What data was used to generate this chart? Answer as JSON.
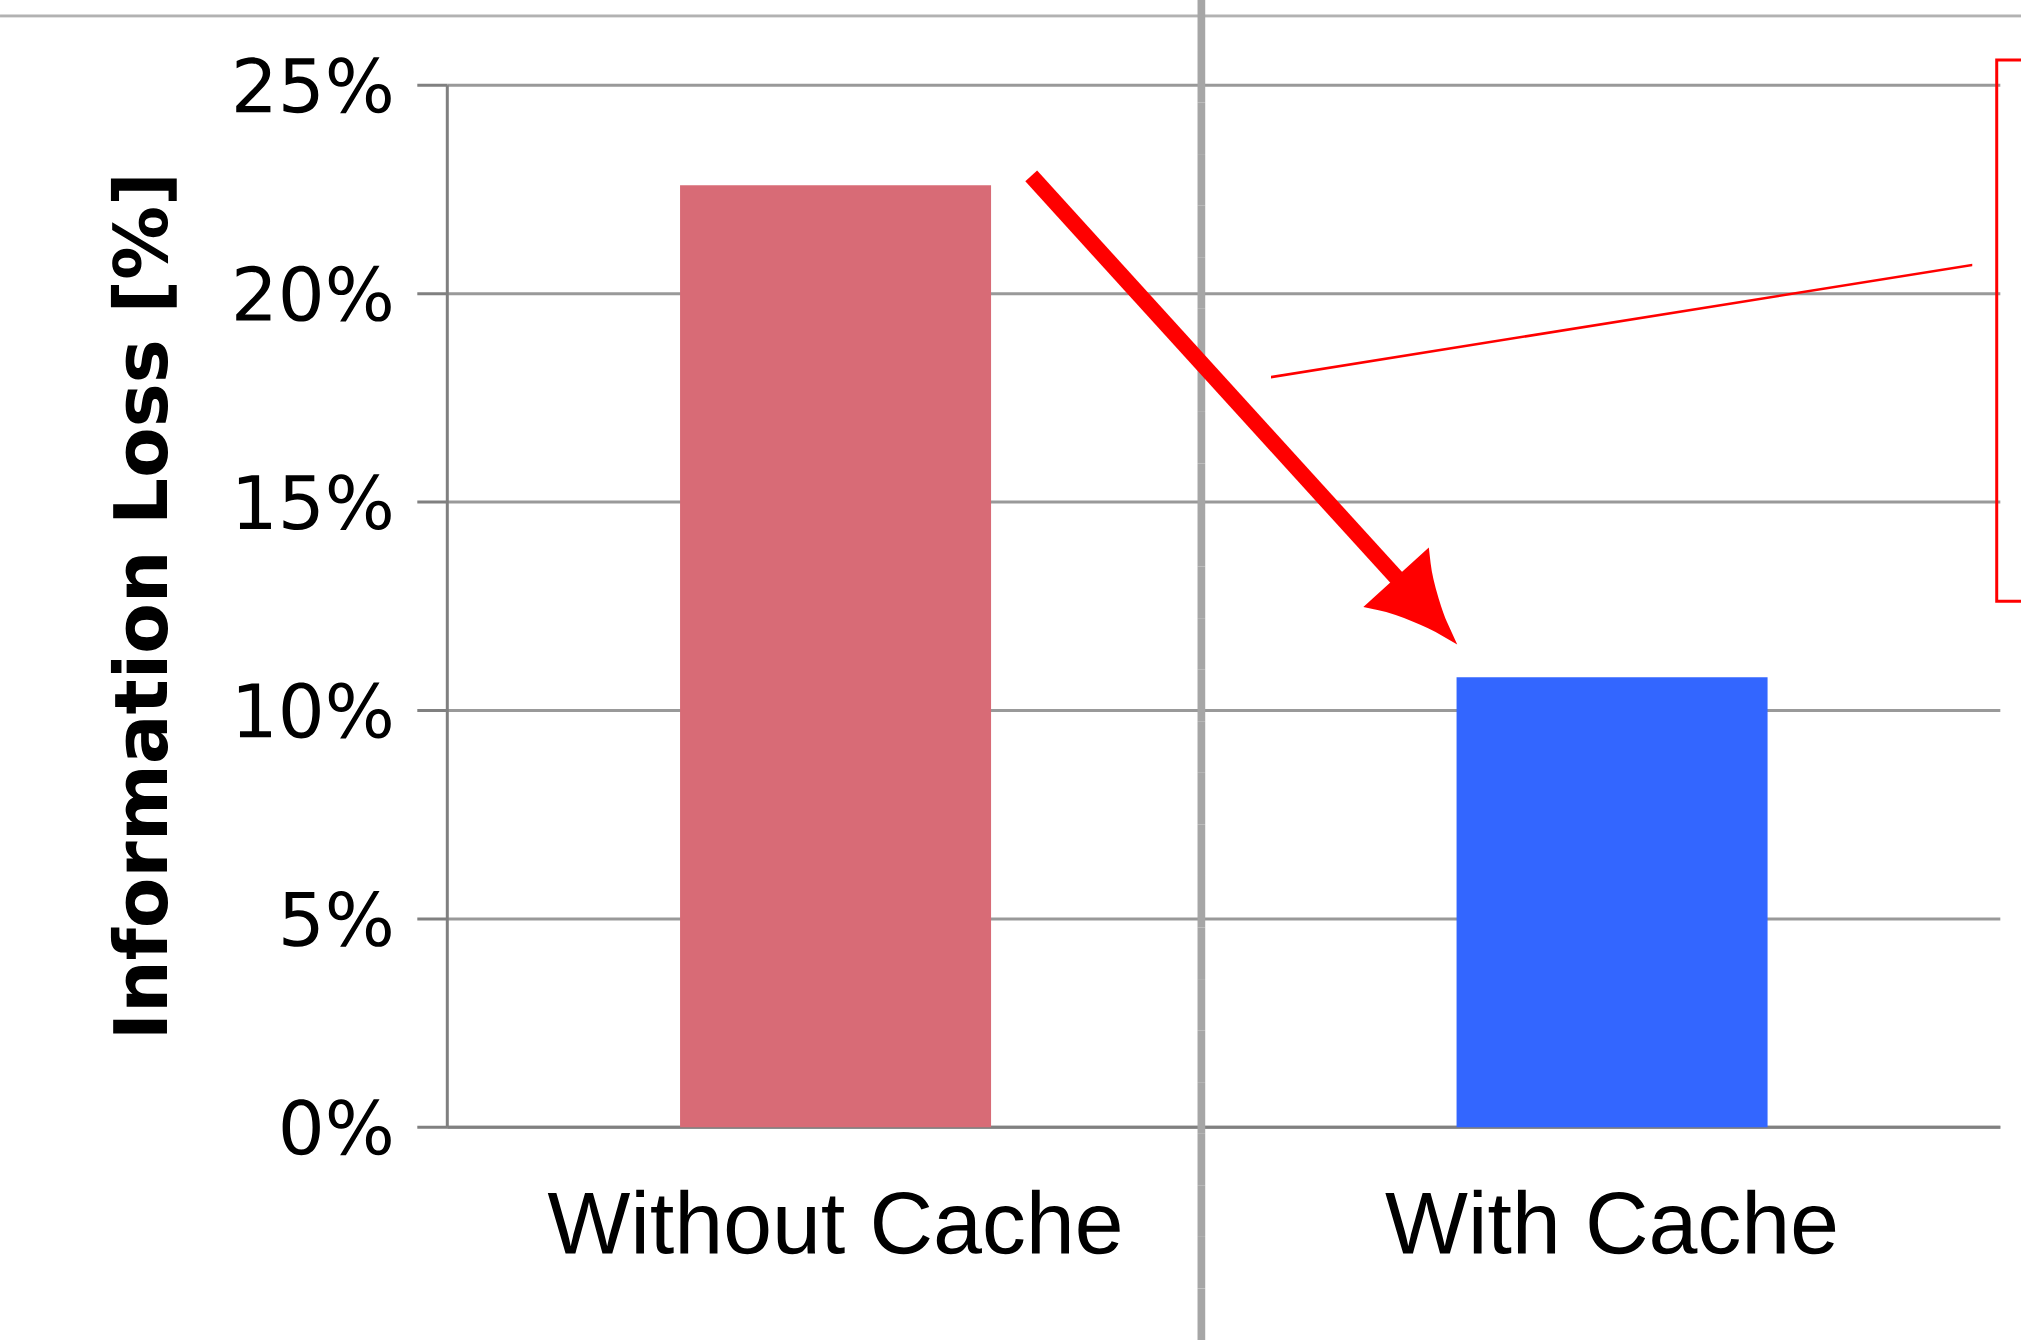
{
  "chart_data": {
    "type": "bar",
    "ylabel": "Information Loss [%]",
    "categories": [
      "Without Cache",
      "With Cache"
    ],
    "values": [
      22.6,
      10.8
    ],
    "colors": [
      "#d86b76",
      "#3366ff"
    ],
    "ylim": [
      0,
      25
    ],
    "yticks": [
      {
        "value": 0,
        "label": "0%"
      },
      {
        "value": 5,
        "label": "5%"
      },
      {
        "value": 10,
        "label": "10%"
      },
      {
        "value": 15,
        "label": "15%"
      },
      {
        "value": 20,
        "label": "20%"
      },
      {
        "value": 25,
        "label": "25%"
      }
    ],
    "grid": "y"
  }
}
